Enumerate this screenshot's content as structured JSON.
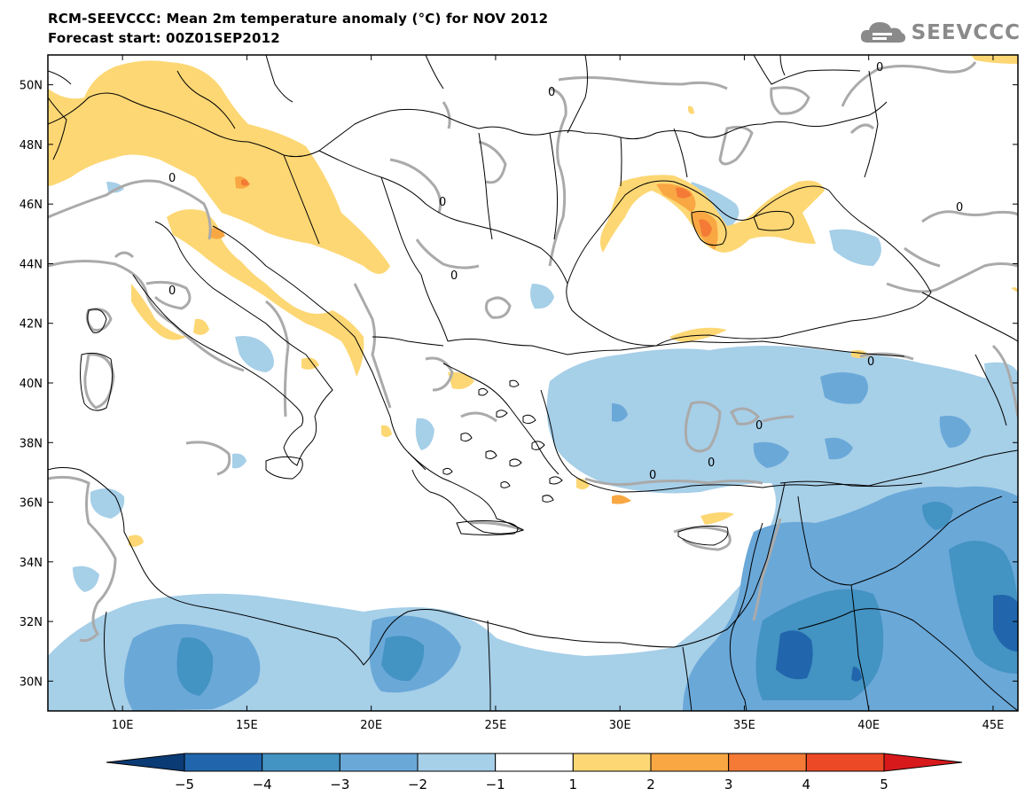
{
  "header": {
    "title": "RCM-SEEVCCC: Mean 2m temperature anomaly (°C) for NOV 2012",
    "subtitle": "Forecast start: 00Z01SEP2012",
    "logo_text": "SEEVCCC"
  },
  "map": {
    "lon_range": [
      7,
      46
    ],
    "lat_range": [
      29,
      51
    ],
    "lon_ticks": [
      "10E",
      "15E",
      "20E",
      "25E",
      "30E",
      "35E",
      "40E",
      "45E"
    ],
    "lon_tick_values": [
      10,
      15,
      20,
      25,
      30,
      35,
      40,
      45
    ],
    "lat_ticks": [
      "50N",
      "48N",
      "46N",
      "44N",
      "42N",
      "40N",
      "38N",
      "36N",
      "34N",
      "32N",
      "30N"
    ],
    "lat_tick_values": [
      50,
      48,
      46,
      44,
      42,
      40,
      38,
      36,
      34,
      32,
      30
    ],
    "contour_label": "0"
  },
  "colorbar": {
    "labels": [
      "−5",
      "−4",
      "−3",
      "−2",
      "−1",
      "1",
      "2",
      "3",
      "4",
      "5"
    ],
    "colors": [
      "#0b3b75",
      "#2166ac",
      "#4393c3",
      "#6aa8d8",
      "#a6cfe8",
      "#ffffff",
      "#fdd774",
      "#f9a743",
      "#f47a36",
      "#ec4a26",
      "#d7191c"
    ]
  }
}
